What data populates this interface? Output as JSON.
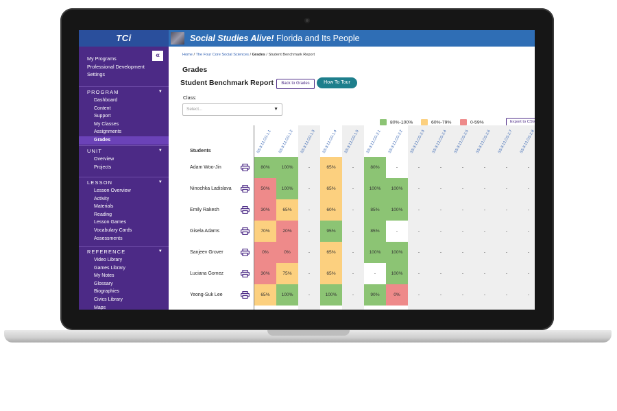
{
  "app": {
    "logo": "TCi",
    "product_brand": "Social Studies Alive!",
    "product_title": "Florida and Its People"
  },
  "sidebar": {
    "collapse_glyph": "«",
    "top_links": [
      "My Programs",
      "Professional Development",
      "Settings"
    ],
    "sections": [
      {
        "title": "PROGRAM",
        "items": [
          "Dashboard",
          "Content",
          "Support",
          "My Classes",
          "Assignments",
          "Grades"
        ],
        "active": "Grades"
      },
      {
        "title": "UNIT",
        "items": [
          "Overview",
          "Projects"
        ]
      },
      {
        "title": "LESSON",
        "items": [
          "Lesson Overview",
          "Activity",
          "Materials",
          "Reading",
          "Lesson Games",
          "Vocabulary Cards",
          "Assessments"
        ]
      },
      {
        "title": "REFERENCE",
        "items": [
          "Video Library",
          "Games Library",
          "My Notes",
          "Glossary",
          "Biographies",
          "Civics Library",
          "Maps"
        ]
      }
    ]
  },
  "breadcrumb": {
    "home": "Home",
    "sep": " / ",
    "program": "The Four Core Social Sciences",
    "grades": "Grades",
    "current": "Student Benchmark Report"
  },
  "page": {
    "heading": "Grades",
    "report_title": "Student Benchmark Report",
    "back_button": "Back to Grades",
    "tour_button": "How To Tour",
    "class_label": "Class:",
    "class_placeholder": "Select...",
    "export_button": "Export to CSV"
  },
  "legend": [
    {
      "label": "80%-100%",
      "color": "#8cc474"
    },
    {
      "label": "60%-79%",
      "color": "#fcd07f"
    },
    {
      "label": "0-59%",
      "color": "#ee8a8a"
    }
  ],
  "table": {
    "students_header": "Students",
    "columns": [
      "SS.9.12.CG.1.1",
      "SS.9.12.CG.1.2",
      "SS.9.12.CG.1.3",
      "SS.9.12.CG.1.4",
      "SS.9.12.CG.1.5",
      "SS.9.12.CG.2.1",
      "SS.9.12.CG.2.2",
      "SS.9.12.CG.2.3",
      "SS.9.12.CG.2.4",
      "SS.9.12.CG.2.5",
      "SS.9.12.CG.2.6",
      "SS.9.12.CG.2.7",
      "SS.9.12.CG.2.8"
    ],
    "rows": [
      {
        "name": "Adam Woo-Jin",
        "values": [
          "80%",
          "100%",
          "-",
          "65%",
          "-",
          "80%",
          "-",
          "-",
          "-",
          "-",
          "-",
          "-",
          "-"
        ]
      },
      {
        "name": "Ninochka Ladislava",
        "values": [
          "50%",
          "100%",
          "-",
          "65%",
          "-",
          "100%",
          "100%",
          "-",
          "-",
          "-",
          "-",
          "-",
          "-"
        ]
      },
      {
        "name": "Emily Rakesh",
        "values": [
          "30%",
          "65%",
          "-",
          "60%",
          "-",
          "85%",
          "100%",
          "-",
          "-",
          "-",
          "-",
          "-",
          "-"
        ]
      },
      {
        "name": "Gisela Adams",
        "values": [
          "70%",
          "20%",
          "-",
          "95%",
          "-",
          "85%",
          "-",
          "-",
          "-",
          "-",
          "-",
          "-",
          "-"
        ]
      },
      {
        "name": "Sanjeev Grover",
        "values": [
          "0%",
          "0%",
          "-",
          "65%",
          "-",
          "100%",
          "100%",
          "-",
          "-",
          "-",
          "-",
          "-",
          "-"
        ]
      },
      {
        "name": "Luciana Gomez",
        "values": [
          "30%",
          "75%",
          "-",
          "65%",
          "-",
          "-",
          "100%",
          "-",
          "-",
          "-",
          "-",
          "-",
          "-"
        ]
      },
      {
        "name": "Yeong-Suk  Lee",
        "values": [
          "65%",
          "100%",
          "-",
          "100%",
          "-",
          "90%",
          "0%",
          "-",
          "-",
          "-",
          "-",
          "-",
          "-"
        ]
      }
    ]
  },
  "icons": {
    "print": "printer-icon",
    "dropdown": "chevron-down-icon"
  }
}
